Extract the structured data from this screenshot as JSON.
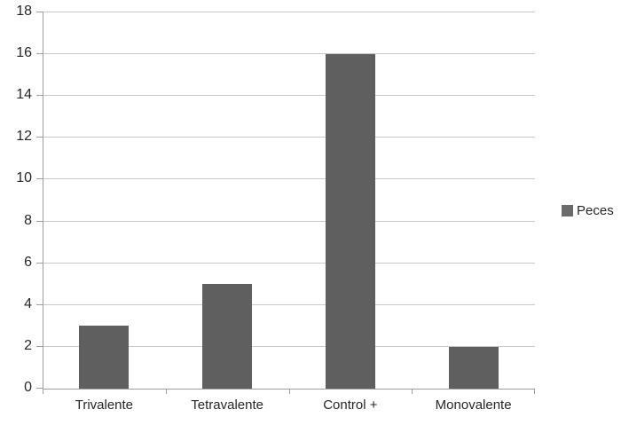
{
  "chart_data": {
    "type": "bar",
    "title": "",
    "xlabel": "",
    "ylabel": "",
    "categories": [
      "Trivalente",
      "Tetravalente",
      "Control +",
      "Monovalente"
    ],
    "series": [
      {
        "name": "Peces",
        "values": [
          3,
          5,
          16,
          2
        ]
      }
    ],
    "ylim": [
      0,
      18
    ],
    "ytick_step": 2,
    "yticks": [
      0,
      2,
      4,
      6,
      8,
      10,
      12,
      14,
      16,
      18
    ],
    "grid": "horizontal",
    "legend_position": "right"
  },
  "colors": {
    "background": "#ffffff",
    "bar_fill": "#5f5f5f",
    "legend_swatch": "#6a6a6a",
    "gridline": "#c7c7c7",
    "axis_line": "#9e9e9e",
    "text": "#262626"
  }
}
